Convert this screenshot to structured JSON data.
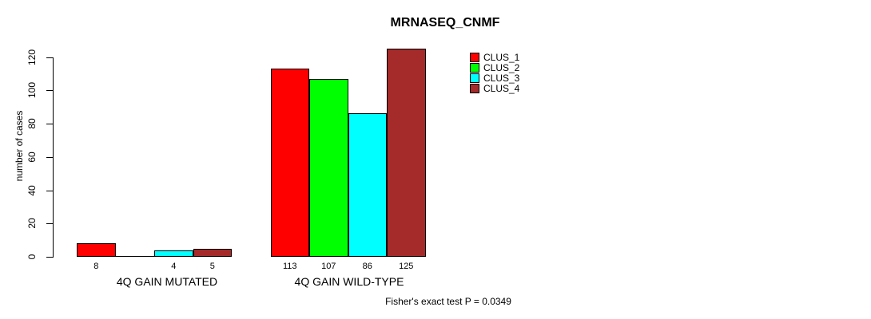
{
  "title": "MRNASEQ_CNMF",
  "footer": "Fisher's exact test P = 0.0349",
  "chart_data": {
    "type": "bar",
    "title": "MRNASEQ_CNMF",
    "xlabel": "",
    "ylabel": "number of cases",
    "categories": [
      "4Q GAIN MUTATED",
      "4Q GAIN WILD-TYPE"
    ],
    "series": [
      {
        "name": "CLUS_1",
        "color": "#FF0000",
        "values": [
          8,
          113
        ]
      },
      {
        "name": "CLUS_2",
        "color": "#00FF00",
        "values": [
          0,
          107
        ]
      },
      {
        "name": "CLUS_3",
        "color": "#00FFFF",
        "values": [
          4,
          86
        ]
      },
      {
        "name": "CLUS_4",
        "color": "#A52A2A",
        "values": [
          5,
          125
        ]
      }
    ],
    "bar_value_labels": [
      [
        "8",
        null,
        "4",
        "5"
      ],
      [
        "113",
        "107",
        "86",
        "125"
      ]
    ],
    "yticks": [
      0,
      20,
      40,
      60,
      80,
      100,
      120
    ],
    "ylim": [
      0,
      128
    ],
    "grid": false,
    "legend_position": "top-right",
    "legend_entries": [
      "CLUS_1",
      "CLUS_2",
      "CLUS_3",
      "CLUS_4"
    ],
    "annotation": "Fisher's exact test P = 0.0349"
  }
}
